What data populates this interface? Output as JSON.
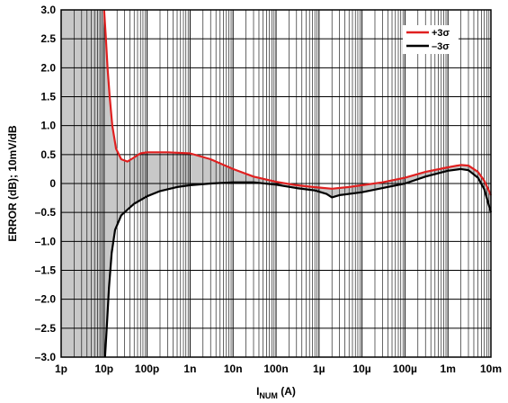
{
  "chart_data": {
    "type": "line",
    "title": "",
    "xlabel": {
      "main": "I",
      "sub": "NUM",
      "unit": " (A)"
    },
    "ylabel": "ERROR (dB); 10mV/dB",
    "x_scale": "log",
    "xlim": [
      1e-12,
      0.01
    ],
    "ylim": [
      -3.0,
      3.0
    ],
    "grid": true,
    "legend_position": "top-right",
    "x_ticks": [
      {
        "value": 1e-12,
        "label": "1p"
      },
      {
        "value": 1e-11,
        "label": "10p"
      },
      {
        "value": 1e-10,
        "label": "100p"
      },
      {
        "value": 1e-09,
        "label": "1n"
      },
      {
        "value": 1e-08,
        "label": "10n"
      },
      {
        "value": 1e-07,
        "label": "100n"
      },
      {
        "value": 1e-06,
        "label": "1µ"
      },
      {
        "value": 1e-05,
        "label": "10µ"
      },
      {
        "value": 0.0001,
        "label": "100µ"
      },
      {
        "value": 0.001,
        "label": "1m"
      },
      {
        "value": 0.01,
        "label": "10m"
      }
    ],
    "y_ticks": [
      {
        "value": 3.0,
        "label": "3.0"
      },
      {
        "value": 2.5,
        "label": "2.5"
      },
      {
        "value": 2.0,
        "label": "2.0"
      },
      {
        "value": 1.5,
        "label": "1.5"
      },
      {
        "value": 1.0,
        "label": "1.0"
      },
      {
        "value": 0.5,
        "label": "0.5"
      },
      {
        "value": 0,
        "label": "0"
      },
      {
        "value": -0.5,
        "label": "–0.5"
      },
      {
        "value": -1.0,
        "label": "–1.0"
      },
      {
        "value": -1.5,
        "label": "–1.5"
      },
      {
        "value": -2.0,
        "label": "–2.0"
      },
      {
        "value": -2.5,
        "label": "–2.5"
      },
      {
        "value": -3.0,
        "label": "–3.0"
      }
    ],
    "band_fill_color": "#c8c8c8",
    "series": [
      {
        "name": "+3σ",
        "color": "#e02020",
        "points": [
          [
            1e-11,
            3.0
          ],
          [
            1.1e-11,
            2.5
          ],
          [
            1.2e-11,
            2.0
          ],
          [
            1.35e-11,
            1.5
          ],
          [
            1.55e-11,
            1.0
          ],
          [
            1.9e-11,
            0.6
          ],
          [
            2.5e-11,
            0.42
          ],
          [
            3.5e-11,
            0.38
          ],
          [
            5e-11,
            0.45
          ],
          [
            7e-11,
            0.52
          ],
          [
            1e-10,
            0.54
          ],
          [
            3e-10,
            0.54
          ],
          [
            1e-09,
            0.52
          ],
          [
            3e-09,
            0.42
          ],
          [
            1e-08,
            0.25
          ],
          [
            3e-08,
            0.12
          ],
          [
            1e-07,
            0.03
          ],
          [
            3e-07,
            -0.03
          ],
          [
            1e-06,
            -0.07
          ],
          [
            2e-06,
            -0.09
          ],
          [
            5e-06,
            -0.06
          ],
          [
            1e-05,
            -0.03
          ],
          [
            3e-05,
            0.02
          ],
          [
            0.0001,
            0.1
          ],
          [
            0.0003,
            0.2
          ],
          [
            0.001,
            0.28
          ],
          [
            0.002,
            0.32
          ],
          [
            0.003,
            0.31
          ],
          [
            0.005,
            0.2
          ],
          [
            0.007,
            0.05
          ],
          [
            0.01,
            -0.2
          ]
        ]
      },
      {
        "name": "–3σ",
        "color": "#000000",
        "points": [
          [
            1.05e-11,
            -3.0
          ],
          [
            1.15e-11,
            -2.5
          ],
          [
            1.3e-11,
            -1.8
          ],
          [
            1.5e-11,
            -1.2
          ],
          [
            1.8e-11,
            -0.8
          ],
          [
            2.5e-11,
            -0.55
          ],
          [
            3.5e-11,
            -0.45
          ],
          [
            5e-11,
            -0.35
          ],
          [
            1e-10,
            -0.22
          ],
          [
            2e-10,
            -0.13
          ],
          [
            5e-10,
            -0.06
          ],
          [
            1e-09,
            -0.03
          ],
          [
            3e-09,
            0.0
          ],
          [
            1e-08,
            0.02
          ],
          [
            3e-08,
            0.02
          ],
          [
            1e-07,
            -0.02
          ],
          [
            3e-07,
            -0.08
          ],
          [
            8e-07,
            -0.12
          ],
          [
            1.5e-06,
            -0.18
          ],
          [
            2e-06,
            -0.24
          ],
          [
            3e-06,
            -0.2
          ],
          [
            1e-05,
            -0.15
          ],
          [
            3e-05,
            -0.08
          ],
          [
            0.0001,
            0.0
          ],
          [
            0.0003,
            0.12
          ],
          [
            0.001,
            0.22
          ],
          [
            0.002,
            0.25
          ],
          [
            0.003,
            0.23
          ],
          [
            0.005,
            0.1
          ],
          [
            0.007,
            -0.1
          ],
          [
            0.01,
            -0.5
          ]
        ]
      }
    ]
  }
}
